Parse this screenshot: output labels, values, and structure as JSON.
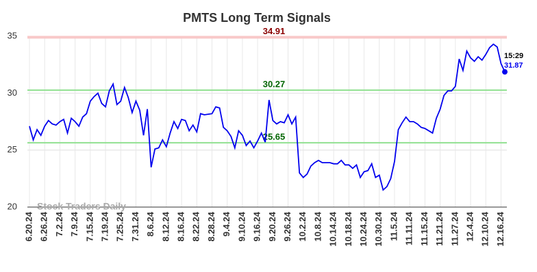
{
  "chart_data": {
    "type": "line",
    "title": "PMTS Long Term Signals",
    "categories": [
      "6.20.24",
      null,
      null,
      null,
      "6.26.24",
      null,
      null,
      null,
      "7.2.24",
      null,
      null,
      null,
      "7.9.24",
      null,
      null,
      null,
      "7.15.24",
      null,
      null,
      null,
      "7.19.24",
      null,
      null,
      null,
      "7.25.24",
      null,
      null,
      null,
      "7.31.24",
      null,
      null,
      null,
      "8.6.24",
      null,
      null,
      null,
      "8.12.24",
      null,
      null,
      null,
      "8.16.24",
      null,
      null,
      null,
      "8.22.24",
      null,
      null,
      null,
      "8.28.24",
      null,
      null,
      null,
      "9.4.24",
      null,
      null,
      null,
      "9.10.24",
      null,
      null,
      null,
      "9.16.24",
      null,
      null,
      null,
      "9.20.24",
      null,
      null,
      null,
      "9.26.24",
      null,
      null,
      null,
      "10.2.24",
      null,
      null,
      null,
      "10.8.24",
      null,
      null,
      null,
      "10.14.24",
      null,
      null,
      null,
      "10.18.24",
      null,
      null,
      null,
      "10.24.24",
      null,
      null,
      null,
      "10.30.24",
      null,
      null,
      null,
      "11.5.24",
      null,
      null,
      null,
      "11.11.24",
      null,
      null,
      null,
      "11.15.24",
      null,
      null,
      null,
      "11.21.24",
      null,
      null,
      null,
      "11.27.24",
      null,
      null,
      null,
      "12.4.24",
      null,
      null,
      null,
      "12.10.24",
      null,
      null,
      null,
      "12.16.24",
      null
    ],
    "series": [
      {
        "color": "#0000ee",
        "values": [
          27.1,
          25.9,
          26.8,
          26.3,
          27.1,
          27.6,
          27.3,
          27.2,
          27.5,
          27.7,
          26.5,
          27.8,
          27.5,
          27.1,
          27.9,
          28.2,
          29.3,
          29.7,
          30.0,
          29.1,
          28.8,
          30.2,
          30.8,
          29.0,
          29.3,
          30.5,
          29.6,
          28.3,
          29.3,
          28.5,
          26.3,
          28.6,
          23.5,
          25.1,
          25.2,
          25.9,
          25.3,
          26.5,
          27.5,
          26.9,
          27.7,
          27.6,
          26.7,
          27.2,
          26.6,
          28.2,
          28.1,
          28.15,
          28.2,
          28.8,
          28.7,
          27.0,
          26.7,
          26.2,
          25.2,
          26.7,
          26.3,
          25.4,
          25.8,
          25.2,
          25.8,
          26.5,
          25.7,
          29.4,
          27.6,
          27.3,
          27.5,
          27.4,
          28.1,
          27.3,
          27.9,
          23.0,
          22.6,
          22.9,
          23.6,
          23.9,
          24.1,
          23.9,
          23.9,
          23.9,
          23.8,
          23.8,
          24.1,
          23.7,
          23.7,
          23.4,
          23.7,
          22.6,
          23.1,
          23.2,
          23.8,
          22.6,
          22.8,
          21.5,
          21.8,
          22.5,
          24.0,
          26.8,
          27.4,
          27.9,
          27.5,
          27.5,
          27.3,
          27.0,
          26.9,
          26.7,
          26.5,
          27.8,
          28.6,
          29.8,
          30.2,
          30.2,
          30.6,
          33.0,
          32.0,
          33.7,
          33.1,
          32.8,
          33.2,
          32.9,
          33.4,
          34.0,
          34.3,
          34.05,
          32.6,
          31.87
        ]
      }
    ],
    "last_time": "15:29",
    "reference_lines": [
      {
        "value": 34.91,
        "color": "#f8c8c8",
        "label_color": "#8b0000"
      },
      {
        "value": 30.27,
        "color": "#90e090",
        "label_color": "#006400"
      },
      {
        "value": 25.65,
        "color": "#90e090",
        "label_color": "#006400"
      }
    ],
    "watermark": "Stock Traders Daily",
    "ylim": [
      20,
      35
    ],
    "yticks": [
      20,
      25,
      30,
      35
    ],
    "grid": true
  }
}
